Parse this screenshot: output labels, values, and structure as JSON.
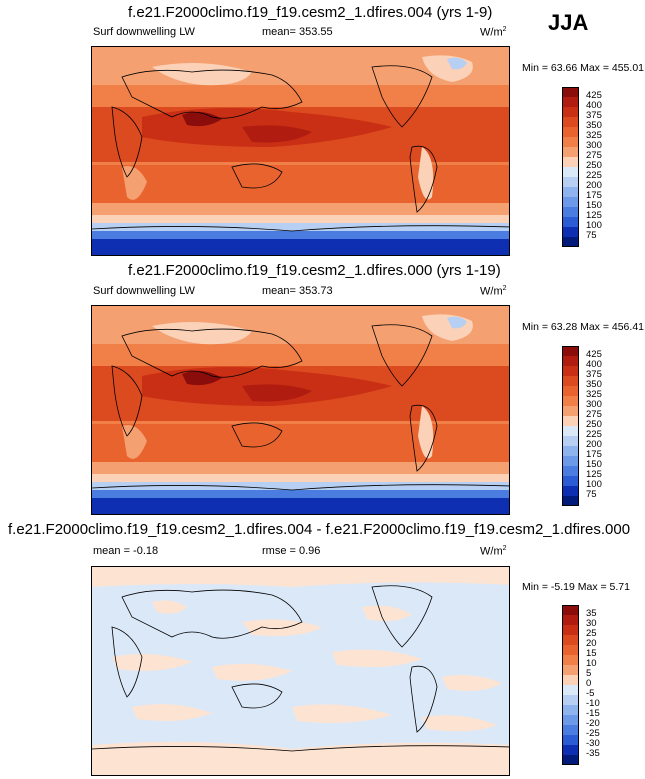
{
  "season": "JJA",
  "panels": [
    {
      "title": "f.e21.F2000climo.f19_f19.cesm2_1.dfires.004 (yrs 1-9)",
      "left_label": "Surf downwelling LW",
      "center_label": "mean= 353.55",
      "units": "W/m",
      "units_sup": "2",
      "minmax": "Min = 63.66 Max = 455.01",
      "colorbar_labels": [
        "425",
        "400",
        "375",
        "350",
        "325",
        "300",
        "275",
        "250",
        "225",
        "200",
        "175",
        "150",
        "125",
        "100",
        "75"
      ],
      "colorbar_colors": [
        "#8b0d0b",
        "#b01d10",
        "#c92f14",
        "#dc4a1f",
        "#e8632e",
        "#f07f48",
        "#f5a071",
        "#fbd1b8",
        "#dbe8f8",
        "#b6cff2",
        "#8fb3ec",
        "#6d9ae8",
        "#4b7de0",
        "#2b5cd4",
        "#0f2fb3",
        "#021a7a"
      ]
    },
    {
      "title": "f.e21.F2000climo.f19_f19.cesm2_1.dfires.000 (yrs 1-19)",
      "left_label": "Surf downwelling LW",
      "center_label": "mean= 353.73",
      "units": "W/m",
      "units_sup": "2",
      "minmax": "Min = 63.28 Max = 456.41",
      "colorbar_labels": [
        "425",
        "400",
        "375",
        "350",
        "325",
        "300",
        "275",
        "250",
        "225",
        "200",
        "175",
        "150",
        "125",
        "100",
        "75"
      ],
      "colorbar_colors": [
        "#8b0d0b",
        "#b01d10",
        "#c92f14",
        "#dc4a1f",
        "#e8632e",
        "#f07f48",
        "#f5a071",
        "#fbd1b8",
        "#dbe8f8",
        "#b6cff2",
        "#8fb3ec",
        "#6d9ae8",
        "#4b7de0",
        "#2b5cd4",
        "#0f2fb3",
        "#021a7a"
      ]
    },
    {
      "title": "f.e21.F2000climo.f19_f19.cesm2_1.dfires.004 - f.e21.F2000climo.f19_f19.cesm2_1.dfires.000",
      "left_label": "mean =  -0.18",
      "center_label": "rmse =   0.96",
      "units": "W/m",
      "units_sup": "2",
      "minmax": "Min = -5.19 Max =   5.71",
      "colorbar_labels": [
        "35",
        "30",
        "25",
        "20",
        "15",
        "10",
        "5",
        "0",
        "-5",
        "-10",
        "-15",
        "-20",
        "-25",
        "-30",
        "-35"
      ],
      "colorbar_colors": [
        "#8b0d0b",
        "#b01d10",
        "#c92f14",
        "#dc4a1f",
        "#e8632e",
        "#f07f48",
        "#f5a071",
        "#fbd1b8",
        "#dbe8f8",
        "#b6cff2",
        "#8fb3ec",
        "#6d9ae8",
        "#4b7de0",
        "#2b5cd4",
        "#0f2fb3",
        "#021a7a"
      ]
    }
  ]
}
